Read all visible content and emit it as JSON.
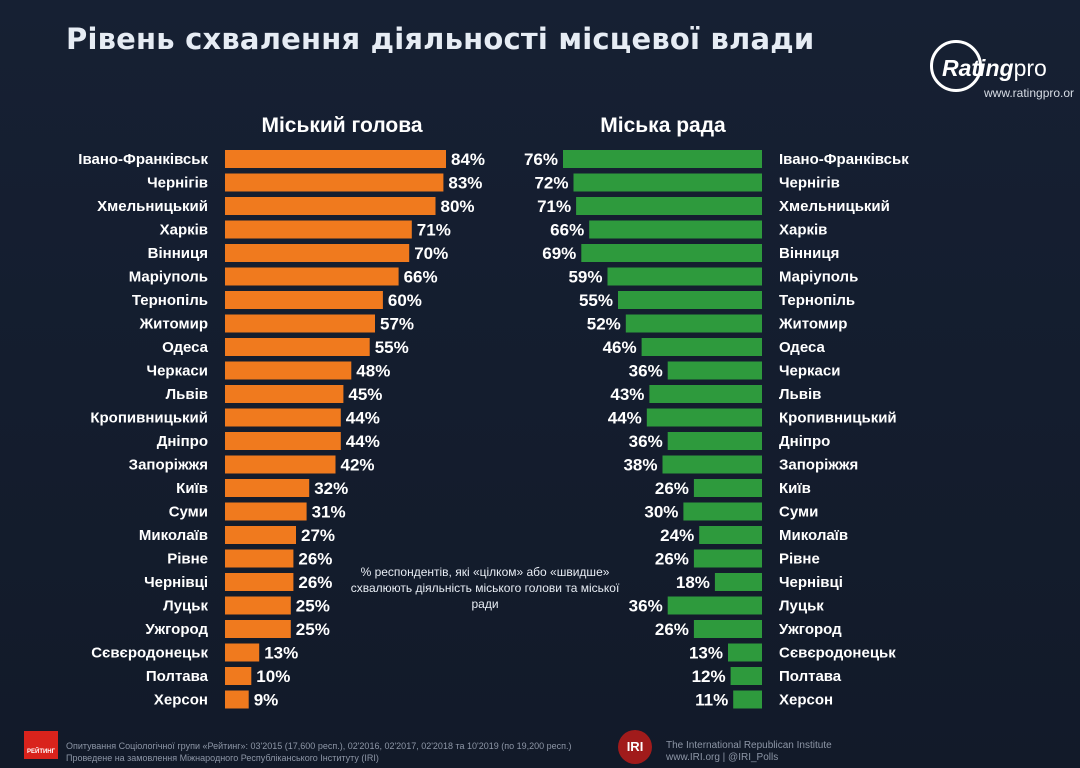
{
  "title": "Рівень схвалення діяльності місцевої влади",
  "logo": {
    "brand": "Rating",
    "brand_suffix": "pro",
    "url": "www.ratingpro.or"
  },
  "note": "% респондентів, які «цілком» або «швидше» схвалюють діяльність міського голови та міської ради",
  "footer": {
    "logo_label": "РЕЙТИНГ",
    "line1": "Опитування Соціологічної групи «Рейтинг»: 03'2015 (17,600 респ.), 02'2016, 02'2017, 02'2018 та 10'2019 (по 19,200 респ.)",
    "line2": "Проведене на замовлення Міжнародного Республіканського Інституту (IRI)",
    "iri_mark": "IRI",
    "iri_line1": "The International Republican Institute",
    "iri_line2": "www.IRI.org | @IRI_Polls"
  },
  "colors": {
    "mayor": "#f07a1e",
    "council": "#2e9a3d",
    "background": "#141c2b"
  },
  "chart_data": [
    {
      "type": "bar",
      "orientation": "horizontal",
      "title": "Міський голова",
      "categories": [
        "Івано-Франківськ",
        "Чернігів",
        "Хмельницький",
        "Харків",
        "Вінниця",
        "Маріуполь",
        "Тернопіль",
        "Житомир",
        "Одеса",
        "Черкаси",
        "Львів",
        "Кропивницький",
        "Дніпро",
        "Запоріжжя",
        "Київ",
        "Суми",
        "Миколаїв",
        "Рівне",
        "Чернівці",
        "Луцьк",
        "Ужгород",
        "Сєвєродонецьк",
        "Полтава",
        "Херсон"
      ],
      "values": [
        84,
        83,
        80,
        71,
        70,
        66,
        60,
        57,
        55,
        48,
        45,
        44,
        44,
        42,
        32,
        31,
        27,
        26,
        26,
        25,
        25,
        13,
        10,
        9
      ],
      "unit": "%",
      "xlim": [
        0,
        84
      ]
    },
    {
      "type": "bar",
      "orientation": "horizontal",
      "title": "Міська рада",
      "categories": [
        "Івано-Франківськ",
        "Чернігів",
        "Хмельницький",
        "Харків",
        "Вінниця",
        "Маріуполь",
        "Тернопіль",
        "Житомир",
        "Одеса",
        "Черкаси",
        "Львів",
        "Кропивницький",
        "Дніпро",
        "Запоріжжя",
        "Київ",
        "Суми",
        "Миколаїв",
        "Рівне",
        "Чернівці",
        "Луцьк",
        "Ужгород",
        "Сєвєродонецьк",
        "Полтава",
        "Херсон"
      ],
      "values": [
        76,
        72,
        71,
        66,
        69,
        59,
        55,
        52,
        46,
        36,
        43,
        44,
        36,
        38,
        26,
        30,
        24,
        26,
        18,
        36,
        26,
        13,
        12,
        11
      ],
      "unit": "%",
      "xlim": [
        0,
        76
      ]
    }
  ]
}
